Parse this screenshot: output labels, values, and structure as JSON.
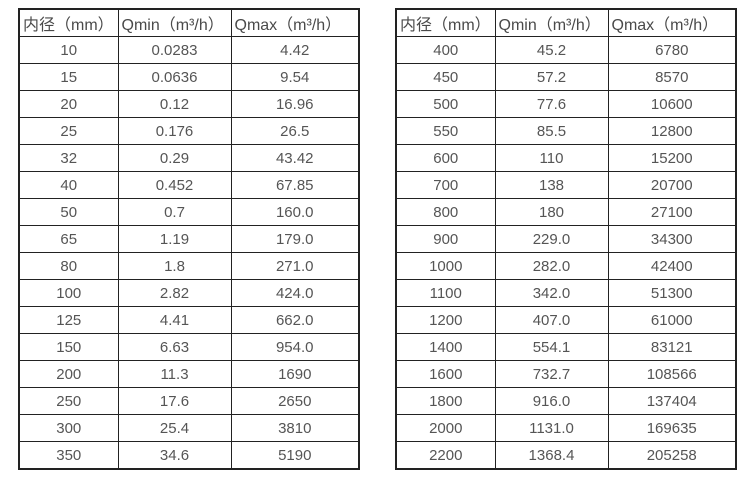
{
  "tables": [
    {
      "name": "small-diameter-flow-table",
      "headers": [
        "内径（mm）",
        "Qmin（m³/h）",
        "Qmax（m³/h）"
      ],
      "rows": [
        [
          "10",
          "0.0283",
          "4.42"
        ],
        [
          "15",
          "0.0636",
          "9.54"
        ],
        [
          "20",
          "0.12",
          "16.96"
        ],
        [
          "25",
          "0.176",
          "26.5"
        ],
        [
          "32",
          "0.29",
          "43.42"
        ],
        [
          "40",
          "0.452",
          "67.85"
        ],
        [
          "50",
          "0.7",
          "160.0"
        ],
        [
          "65",
          "1.19",
          "179.0"
        ],
        [
          "80",
          "1.8",
          "271.0"
        ],
        [
          "100",
          "2.82",
          "424.0"
        ],
        [
          "125",
          "4.41",
          "662.0"
        ],
        [
          "150",
          "6.63",
          "954.0"
        ],
        [
          "200",
          "11.3",
          "1690"
        ],
        [
          "250",
          "17.6",
          "2650"
        ],
        [
          "300",
          "25.4",
          "3810"
        ],
        [
          "350",
          "34.6",
          "5190"
        ]
      ]
    },
    {
      "name": "large-diameter-flow-table",
      "headers": [
        "内径（mm）",
        "Qmin（m³/h）",
        "Qmax（m³/h）"
      ],
      "rows": [
        [
          "400",
          "45.2",
          "6780"
        ],
        [
          "450",
          "57.2",
          "8570"
        ],
        [
          "500",
          "77.6",
          "10600"
        ],
        [
          "550",
          "85.5",
          "12800"
        ],
        [
          "600",
          "110",
          "15200"
        ],
        [
          "700",
          "138",
          "20700"
        ],
        [
          "800",
          "180",
          "27100"
        ],
        [
          "900",
          "229.0",
          "34300"
        ],
        [
          "1000",
          "282.0",
          "42400"
        ],
        [
          "1100",
          "342.0",
          "51300"
        ],
        [
          "1200",
          "407.0",
          "61000"
        ],
        [
          "1400",
          "554.1",
          "83121"
        ],
        [
          "1600",
          "732.7",
          "108566"
        ],
        [
          "1800",
          "916.0",
          "137404"
        ],
        [
          "2000",
          "1131.0",
          "169635"
        ],
        [
          "2200",
          "1368.4",
          "205258"
        ]
      ]
    }
  ],
  "colors": {
    "border": "#222222",
    "header_text": "#4a4a4a",
    "cell_text": "#555555",
    "background": "#ffffff"
  }
}
